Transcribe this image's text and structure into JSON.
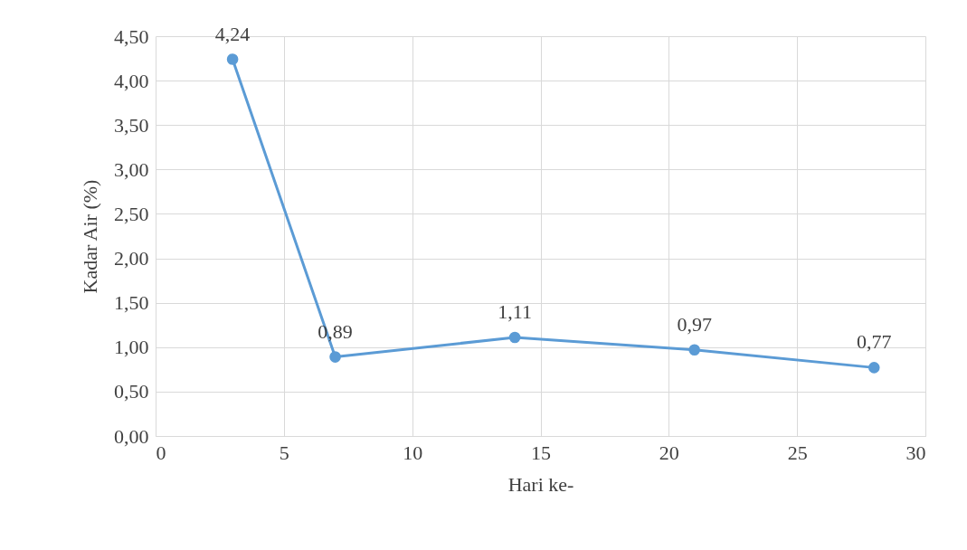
{
  "chart_data": {
    "type": "line",
    "xlabel": "Hari ke-",
    "ylabel": "Kadar Air (%)",
    "x": [
      3,
      7,
      14,
      21,
      28
    ],
    "series": [
      {
        "color": "#5b9bd5",
        "values": [
          4.24,
          0.89,
          1.11,
          0.97,
          0.77
        ],
        "value_labels": [
          "4,24",
          "0,89",
          "1,11",
          "0,97",
          "0,77"
        ]
      }
    ],
    "xlim": [
      0,
      30
    ],
    "xticks": [
      0,
      5,
      10,
      15,
      20,
      25,
      30
    ],
    "ylim": [
      0,
      4.5
    ],
    "yticks": [
      {
        "value": 0,
        "label": "0,00"
      },
      {
        "value": 0.5,
        "label": "0,50"
      },
      {
        "value": 1,
        "label": "1,00"
      },
      {
        "value": 1.5,
        "label": "1,50"
      },
      {
        "value": 2,
        "label": "2,00"
      },
      {
        "value": 2.5,
        "label": "2,50"
      },
      {
        "value": 3,
        "label": "3,00"
      },
      {
        "value": 3.5,
        "label": "3,50"
      },
      {
        "value": 4,
        "label": "4,00"
      },
      {
        "value": 4.5,
        "label": "4,50"
      }
    ],
    "grid": true,
    "marker": "circle",
    "line_style": "solid"
  }
}
